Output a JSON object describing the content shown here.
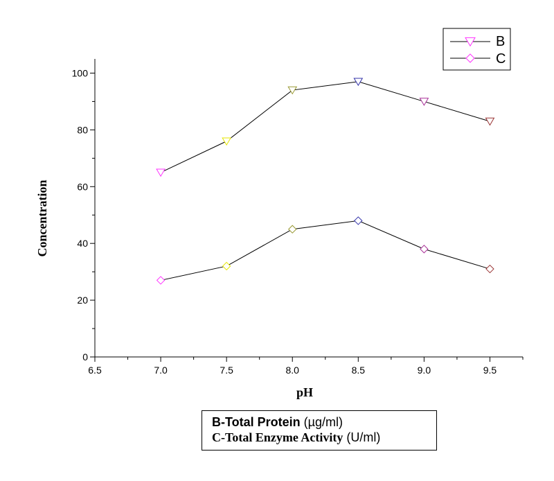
{
  "chart_data": {
    "type": "line",
    "title": "",
    "xlabel": "pH",
    "ylabel": "Concentration",
    "xlim": [
      6.5,
      9.75
    ],
    "ylim": [
      0,
      105
    ],
    "x_ticks": [
      "6.5",
      "7.0",
      "7.5",
      "8.0",
      "8.5",
      "9.0",
      "9.5"
    ],
    "x_tick_values": [
      6.5,
      7.0,
      7.5,
      8.0,
      8.5,
      9.0,
      9.5
    ],
    "y_ticks": [
      "0",
      "20",
      "40",
      "60",
      "80",
      "100"
    ],
    "y_tick_values": [
      0,
      20,
      40,
      60,
      80,
      100
    ],
    "x": [
      7.0,
      7.5,
      8.0,
      8.5,
      9.0,
      9.5
    ],
    "point_colors": [
      "#ff33ff",
      "#e6e600",
      "#999933",
      "#3333aa",
      "#aa3399",
      "#993333"
    ],
    "series": [
      {
        "name": "B",
        "marker": "triangle-down",
        "values": [
          65,
          76,
          94,
          97,
          90,
          83
        ]
      },
      {
        "name": "C",
        "marker": "diamond",
        "values": [
          27,
          32,
          45,
          48,
          38,
          31
        ]
      }
    ],
    "legend": {
      "position": "top-right",
      "line_color": "#000000",
      "marker_color": "#ff33ff"
    },
    "caption": {
      "b_bold": "B-Total Protein",
      "b_unit": " (µg/ml)",
      "c_bold": "C-Total Enzyme Activity",
      "c_unit": " (U/ml)"
    }
  }
}
